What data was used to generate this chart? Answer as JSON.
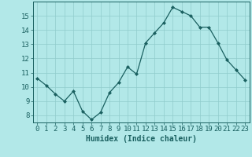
{
  "x": [
    0,
    1,
    2,
    3,
    4,
    5,
    6,
    7,
    8,
    9,
    10,
    11,
    12,
    13,
    14,
    15,
    16,
    17,
    18,
    19,
    20,
    21,
    22,
    23
  ],
  "y": [
    10.6,
    10.1,
    9.5,
    9.0,
    9.7,
    8.3,
    7.7,
    8.2,
    9.6,
    10.3,
    11.4,
    10.9,
    13.1,
    13.8,
    14.5,
    15.6,
    15.3,
    15.0,
    14.2,
    14.2,
    13.1,
    11.9,
    11.2,
    10.5
  ],
  "line_color": "#1a6060",
  "marker": "D",
  "marker_size": 2.0,
  "bg_color": "#b2e8e8",
  "grid_color": "#90cccc",
  "xlabel": "Humidex (Indice chaleur)",
  "xlim": [
    -0.5,
    23.5
  ],
  "ylim": [
    7.5,
    16.0
  ],
  "yticks": [
    8,
    9,
    10,
    11,
    12,
    13,
    14,
    15
  ],
  "xticks": [
    0,
    1,
    2,
    3,
    4,
    5,
    6,
    7,
    8,
    9,
    10,
    11,
    12,
    13,
    14,
    15,
    16,
    17,
    18,
    19,
    20,
    21,
    22,
    23
  ],
  "tick_color": "#1a6060",
  "label_color": "#1a6060",
  "font_size_xlabel": 7,
  "font_size_ticks": 6.5
}
